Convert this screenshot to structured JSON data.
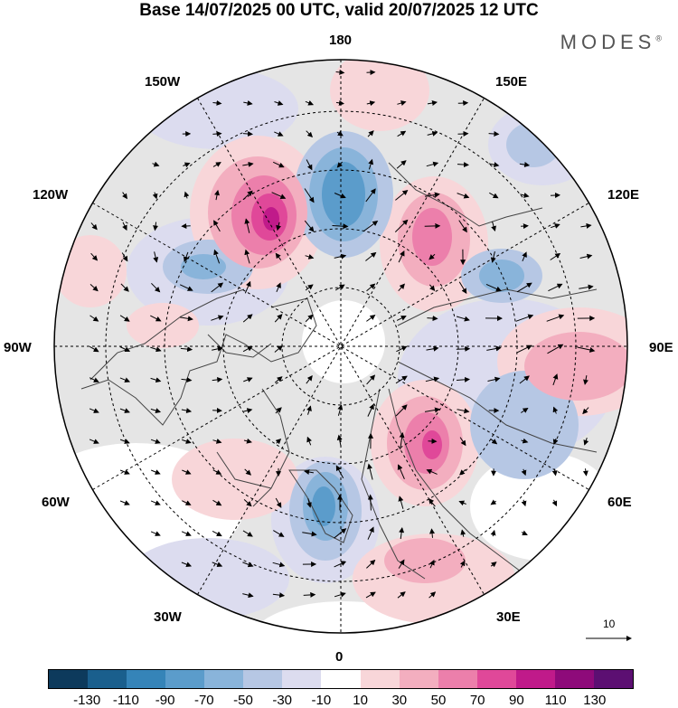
{
  "header": {
    "title": "Base 14/07/2025 00 UTC, valid 20/07/2025 12 UTC",
    "brand": "MODES"
  },
  "map": {
    "projection": "north polar stereographic",
    "longitude_labels": {
      "lon_180": "180",
      "lon_150W": "150W",
      "lon_150E": "150E",
      "lon_120W": "120W",
      "lon_120E": "120E",
      "lon_90W": "90W",
      "lon_90E": "90E",
      "lon_60W": "60W",
      "lon_60E": "60E",
      "lon_30W": "30W",
      "lon_30E": "30E",
      "lon_0": "0"
    },
    "reference_vector_label": "10",
    "colors": {
      "neutral_fill": "#e5e5e5",
      "ocean": "#ffffff",
      "coastline": "#444444"
    }
  },
  "colorbar": {
    "tick_labels": [
      "-130",
      "-110",
      "-90",
      "-70",
      "-50",
      "-30",
      "-10",
      "10",
      "30",
      "50",
      "70",
      "90",
      "110",
      "130"
    ],
    "colors": [
      "#0d3a5c",
      "#1a5f8d",
      "#3584b8",
      "#5b9ccb",
      "#89b4da",
      "#b6c7e4",
      "#dcdcef",
      "#ffffff",
      "#f8d6d9",
      "#f3aebf",
      "#ec7fab",
      "#e04899",
      "#c01a8a",
      "#8e0a7a",
      "#5c0f72"
    ]
  }
}
